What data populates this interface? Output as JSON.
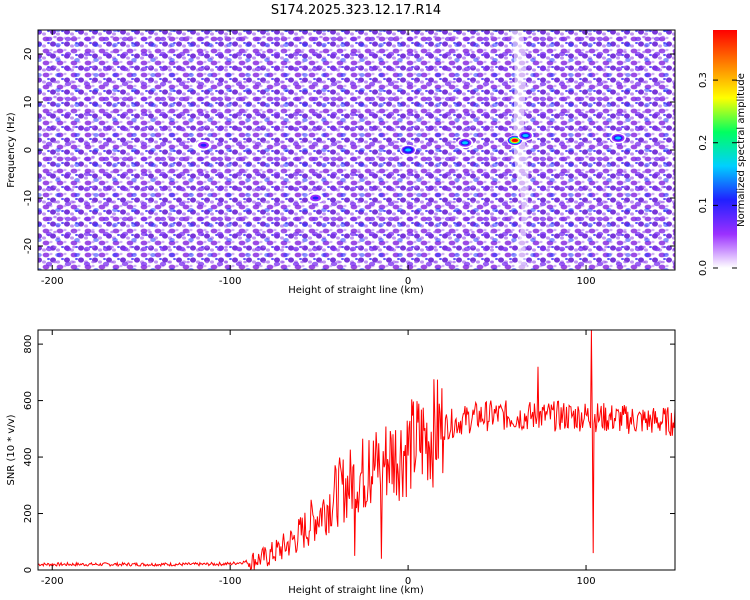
{
  "figure_title": "S174.2025.323.12.17.R14",
  "chart_data": [
    {
      "type": "heatmap",
      "xlabel": "Height of straight line (km)",
      "ylabel": "Frequency (Hz)",
      "xlim": [
        -208,
        150
      ],
      "ylim": [
        -25,
        25
      ],
      "x_ticks": [
        -200,
        -100,
        0,
        100
      ],
      "y_ticks": [
        -20,
        -10,
        0,
        10,
        20
      ],
      "colorbar": {
        "label": "Normalized spectral amplitude",
        "range": [
          0,
          0.38
        ],
        "ticks": [
          0.0,
          0.1,
          0.2,
          0.3
        ],
        "colors": [
          "#ffffff",
          "#9b30ff",
          "#2020ff",
          "#00d0ff",
          "#00ff60",
          "#ffff00",
          "#ff8000",
          "#ff0000"
        ]
      },
      "hotspots": [
        {
          "x": 0,
          "y": 0,
          "value": 0.18
        },
        {
          "x": 32,
          "y": 1.5,
          "value": 0.17
        },
        {
          "x": 60,
          "y": 2,
          "value": 0.36
        },
        {
          "x": 66,
          "y": 3,
          "value": 0.14
        },
        {
          "x": 118,
          "y": 2.5,
          "value": 0.17
        },
        {
          "x": -115,
          "y": 1,
          "value": 0.09
        },
        {
          "x": -52,
          "y": -10,
          "value": 0.09
        }
      ]
    },
    {
      "type": "line",
      "xlabel": "Height of straight line (km)",
      "ylabel": "SNR (10 * v/v)",
      "xlim": [
        -208,
        150
      ],
      "ylim": [
        0,
        850
      ],
      "x_ticks": [
        -200,
        -100,
        0,
        100
      ],
      "y_ticks": [
        0,
        200,
        400,
        600,
        800
      ],
      "series": [
        {
          "color": "#ff0000",
          "points": [
            [
              -208,
              20
            ],
            [
              -180,
              20
            ],
            [
              -150,
              20
            ],
            [
              -120,
              20
            ],
            [
              -100,
              22
            ],
            [
              -90,
              30
            ],
            [
              -80,
              45
            ],
            [
              -70,
              80
            ],
            [
              -60,
              130
            ],
            [
              -50,
              200
            ],
            [
              -40,
              270
            ],
            [
              -30,
              320
            ],
            [
              -20,
              360
            ],
            [
              -10,
              400
            ],
            [
              0,
              430
            ],
            [
              10,
              470
            ],
            [
              20,
              510
            ],
            [
              30,
              530
            ],
            [
              40,
              545
            ],
            [
              50,
              548
            ],
            [
              60,
              545
            ],
            [
              70,
              545
            ],
            [
              80,
              545
            ],
            [
              90,
              545
            ],
            [
              100,
              545
            ],
            [
              110,
              540
            ],
            [
              120,
              535
            ],
            [
              130,
              530
            ],
            [
              140,
              528
            ],
            [
              150,
              525
            ]
          ],
          "spikes": [
            {
              "x": 103,
              "value": 850
            },
            {
              "x": 104,
              "value": 60
            },
            {
              "x": 73,
              "value": 720
            },
            {
              "x": -30,
              "value": 50
            },
            {
              "x": -22,
              "value": 460
            },
            {
              "x": -15,
              "value": 40
            }
          ]
        }
      ]
    }
  ]
}
